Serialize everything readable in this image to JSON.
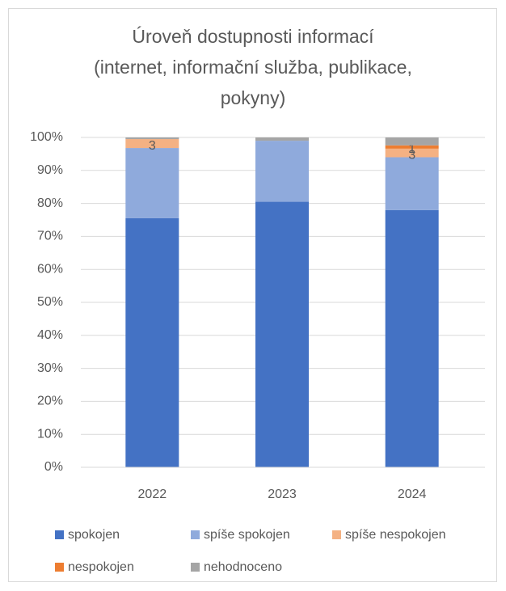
{
  "chart_data": {
    "type": "stacked_bar",
    "title": "Úroveň dostupnosti informací\n(internet, informační služba, publikace,\npokyny)",
    "categories": [
      "2022",
      "2023",
      "2024"
    ],
    "series": [
      {
        "name": "spokojen",
        "color": "#4472c4",
        "values": [
          75.5,
          80.5,
          78
        ]
      },
      {
        "name": "spíše spokojen",
        "color": "#8faadc",
        "values": [
          21.3,
          18.5,
          16
        ]
      },
      {
        "name": "spíše nespokojen",
        "color": "#f4b183",
        "values": [
          2.7,
          0,
          2.6
        ],
        "value_labels": [
          "3",
          null,
          "3"
        ]
      },
      {
        "name": "nespokojen",
        "color": "#ed7d31",
        "values": [
          0,
          0,
          1
        ],
        "value_labels": [
          null,
          null,
          "1"
        ]
      },
      {
        "name": "nehodnoceno",
        "color": "#a5a5a5",
        "values": [
          0.5,
          1,
          2.4
        ]
      }
    ],
    "ylim": [
      0,
      100
    ],
    "yticks": [
      {
        "value": 0,
        "label": "0%"
      },
      {
        "value": 10,
        "label": "10%"
      },
      {
        "value": 20,
        "label": "20%"
      },
      {
        "value": 30,
        "label": "30%"
      },
      {
        "value": 40,
        "label": "40%"
      },
      {
        "value": 50,
        "label": "50%"
      },
      {
        "value": 60,
        "label": "60%"
      },
      {
        "value": 70,
        "label": "70%"
      },
      {
        "value": 80,
        "label": "80%"
      },
      {
        "value": 90,
        "label": "90%"
      },
      {
        "value": 100,
        "label": "100%"
      }
    ],
    "grid": true
  }
}
